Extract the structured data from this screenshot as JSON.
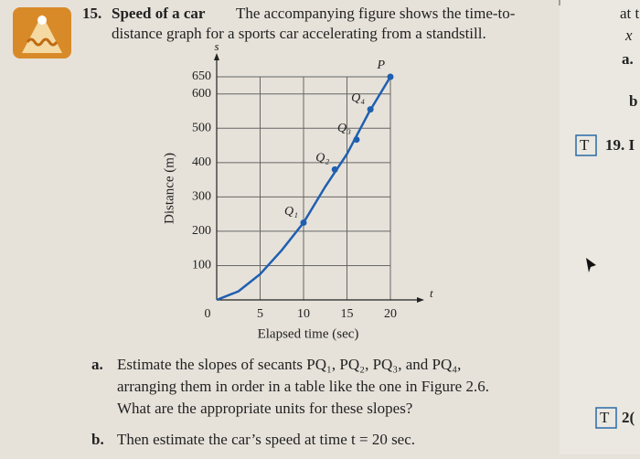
{
  "problem": {
    "number": "15.",
    "heading": "Speed of a car",
    "lines": [
      "The accompanying figure shows the time-to-",
      "distance graph for a sports car accelerating from a standstill."
    ]
  },
  "part_a": {
    "letter": "a.",
    "lines": [
      "Estimate the slopes of secants PQ₁, PQ₂, PQ₃, and PQ₄,",
      "arranging them in order in a table like the one in Figure 2.6.",
      "What are the appropriate units for these slopes?"
    ]
  },
  "part_b": {
    "letter": "b.",
    "text": "Then estimate the car’s speed at time t = 20 sec."
  },
  "margin": [
    "at t",
    "x",
    "a.",
    "b",
    "T",
    "19. I",
    "T",
    "2("
  ],
  "chart_data": {
    "type": "line",
    "x_axis_symbol": "t",
    "y_axis_symbol": "s",
    "xlabel": "Elapsed time (sec)",
    "ylabel": "Distance (m)",
    "x": [
      0,
      2.5,
      5,
      7.5,
      10,
      12.5,
      15,
      17.5,
      20
    ],
    "series": [
      {
        "name": "s",
        "color": "#1f5fb0",
        "values": [
          0,
          25,
          75,
          145,
          225,
          330,
          425,
          545,
          650
        ]
      }
    ],
    "points": [
      {
        "label": "Q₁",
        "x": 10,
        "y": 225
      },
      {
        "label": "Q₂",
        "x": 13.6,
        "y": 380
      },
      {
        "label": "Q₃",
        "x": 16.1,
        "y": 467
      },
      {
        "label": "Q₄",
        "x": 17.7,
        "y": 555
      },
      {
        "label": "P",
        "x": 20,
        "y": 650
      }
    ],
    "xlim": [
      0,
      20
    ],
    "ylim": [
      0,
      650
    ],
    "xticks": [
      0,
      5,
      10,
      15,
      20
    ],
    "yticks": [
      100,
      200,
      300,
      400,
      500,
      600,
      650
    ],
    "grid": true
  }
}
